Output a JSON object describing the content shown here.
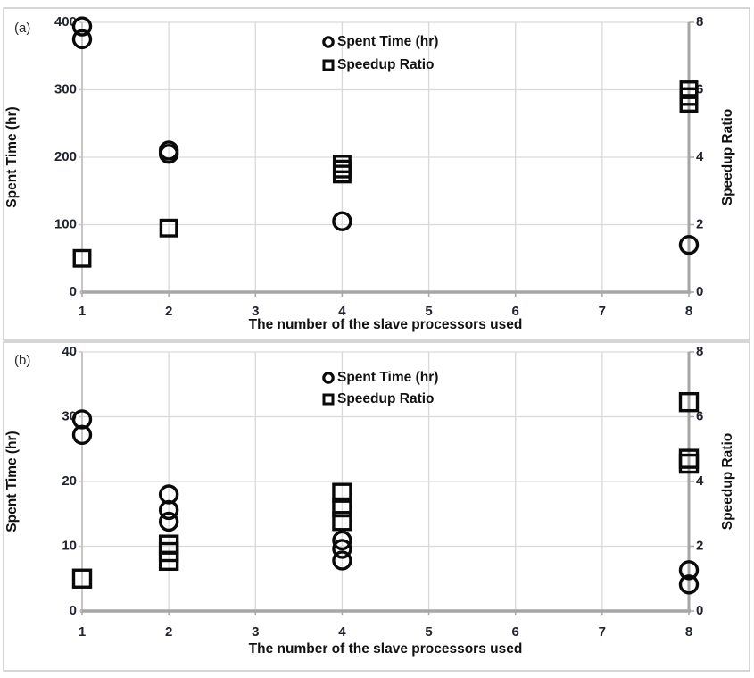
{
  "figure": {
    "panel_labels": [
      "(a)",
      "(b)"
    ]
  },
  "style": {
    "marker_color": "#0a0a0a",
    "gridline_color": "#d9d9d9",
    "axis_color": "#a6a6a6",
    "inner_axis_color": "#c6c6c6",
    "tick_label_color": "#20242e",
    "title_color": "#111111",
    "panel_border_color": "#c9c9c9",
    "background_color": "#ffffff"
  },
  "chart_data": [
    {
      "type": "scatter",
      "panel_label": "(a)",
      "xlabel": "The number of the slave processors used",
      "ylabel_left": "Spent Time (hr)",
      "ylabel_right": "Speedup Ratio",
      "x_ticks": [
        1,
        2,
        3,
        4,
        5,
        6,
        7,
        8
      ],
      "xlim": [
        1,
        8
      ],
      "y_left": {
        "label": "Spent Time (hr)",
        "min": 0,
        "max": 400,
        "ticks": [
          0,
          100,
          200,
          300,
          400
        ]
      },
      "y_right": {
        "label": "Speedup Ratio",
        "min": 0,
        "max": 8,
        "ticks": [
          0,
          2,
          4,
          6,
          8
        ]
      },
      "grid": true,
      "legend_position": "top-center",
      "legend": [
        {
          "label": "Spent Time (hr)",
          "marker": "circle"
        },
        {
          "label": "Speedup Ratio",
          "marker": "square"
        }
      ],
      "series": [
        {
          "name": "Spent Time (hr)",
          "marker": "circle",
          "axis": "left",
          "points": [
            {
              "x": 1,
              "y": 394
            },
            {
              "x": 1,
              "y": 375
            },
            {
              "x": 2,
              "y": 210
            },
            {
              "x": 2,
              "y": 205
            },
            {
              "x": 4,
              "y": 105
            },
            {
              "x": 8,
              "y": 70
            }
          ]
        },
        {
          "name": "Speedup Ratio",
          "marker": "square",
          "axis": "right",
          "points": [
            {
              "x": 1,
              "y": 1.0
            },
            {
              "x": 2,
              "y": 1.9
            },
            {
              "x": 4,
              "y": 3.8
            },
            {
              "x": 4,
              "y": 3.65
            },
            {
              "x": 4,
              "y": 3.5
            },
            {
              "x": 8,
              "y": 6.0
            },
            {
              "x": 8,
              "y": 5.8
            },
            {
              "x": 8,
              "y": 5.6
            }
          ]
        }
      ]
    },
    {
      "type": "scatter",
      "panel_label": "(b)",
      "xlabel": "The number of the slave processors used",
      "ylabel_left": "Spent Time (hr)",
      "ylabel_right": "Speedup Ratio",
      "x_ticks": [
        1,
        2,
        3,
        4,
        5,
        6,
        7,
        8
      ],
      "xlim": [
        1,
        8
      ],
      "y_left": {
        "label": "Spent Time (hr)",
        "min": 0,
        "max": 40,
        "ticks": [
          0,
          10,
          20,
          30,
          40
        ]
      },
      "y_right": {
        "label": "Speedup Ratio",
        "min": 0,
        "max": 8,
        "ticks": [
          0,
          2,
          4,
          6,
          8
        ]
      },
      "grid": true,
      "legend_position": "top-center",
      "legend": [
        {
          "label": "Spent Time (hr)",
          "marker": "circle"
        },
        {
          "label": "Speedup Ratio",
          "marker": "square"
        }
      ],
      "series": [
        {
          "name": "Spent Time (hr)",
          "marker": "circle",
          "axis": "left",
          "points": [
            {
              "x": 1,
              "y": 29.6
            },
            {
              "x": 1,
              "y": 27.2
            },
            {
              "x": 2,
              "y": 18.0
            },
            {
              "x": 2,
              "y": 15.6
            },
            {
              "x": 2,
              "y": 13.8
            },
            {
              "x": 4,
              "y": 10.9
            },
            {
              "x": 4,
              "y": 9.6
            },
            {
              "x": 4,
              "y": 7.8
            },
            {
              "x": 8,
              "y": 6.3
            },
            {
              "x": 8,
              "y": 4.1
            }
          ]
        },
        {
          "name": "Speedup Ratio",
          "marker": "square",
          "axis": "right",
          "points": [
            {
              "x": 1,
              "y": 1.0
            },
            {
              "x": 2,
              "y": 2.05
            },
            {
              "x": 2,
              "y": 1.82
            },
            {
              "x": 2,
              "y": 1.55
            },
            {
              "x": 4,
              "y": 3.65
            },
            {
              "x": 4,
              "y": 3.2
            },
            {
              "x": 4,
              "y": 2.78
            },
            {
              "x": 8,
              "y": 6.45
            },
            {
              "x": 8,
              "y": 4.7
            },
            {
              "x": 8,
              "y": 4.55
            }
          ]
        }
      ]
    }
  ]
}
